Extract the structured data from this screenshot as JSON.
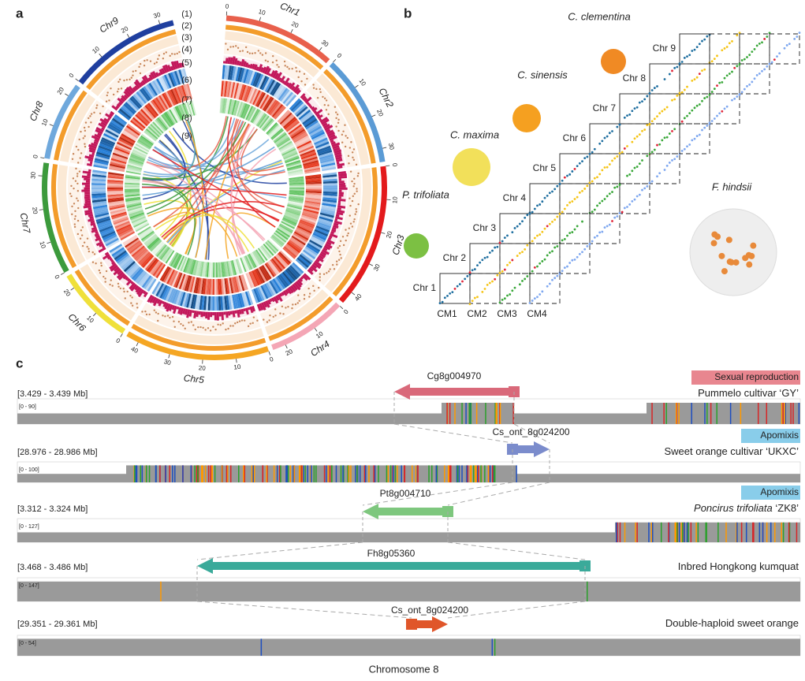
{
  "panel_a": {
    "label": "a",
    "track_labels": [
      "(1)",
      "(2)",
      "(3)",
      "(4)",
      "(5)",
      "(6)",
      "(7)",
      "(8)",
      "(9)"
    ],
    "chromosomes": [
      {
        "name": "Chr1",
        "ticks": [
          0,
          10,
          20,
          30
        ]
      },
      {
        "name": "Chr2",
        "ticks": [
          0,
          10,
          20,
          30
        ]
      },
      {
        "name": "Chr3",
        "ticks": [
          0,
          10,
          20,
          30,
          40
        ]
      },
      {
        "name": "Chr4",
        "ticks": [
          0,
          10,
          20
        ]
      },
      {
        "name": "Chr5",
        "ticks": [
          0,
          10,
          20,
          30,
          40
        ]
      },
      {
        "name": "Chr6",
        "ticks": [
          0,
          10,
          20
        ]
      },
      {
        "name": "Chr7",
        "ticks": [
          0,
          10,
          20,
          30
        ]
      },
      {
        "name": "Chr8",
        "ticks": [
          0,
          10,
          20
        ]
      },
      {
        "name": "Chr9",
        "ticks": [
          0,
          10,
          20,
          30
        ]
      }
    ]
  },
  "panel_b": {
    "label": "b",
    "species": [
      "C. clementina",
      "C. sinensis",
      "C. maxima",
      "P. trifoliata",
      "F. hindsii"
    ],
    "rows": [
      "Chr 1",
      "Chr 2",
      "Chr 3",
      "Chr 4",
      "Chr 5",
      "Chr 6",
      "Chr 7",
      "Chr 8",
      "Chr 9"
    ],
    "columns": [
      "CM1",
      "CM2",
      "CM3",
      "CM4"
    ]
  },
  "panel_c": {
    "label": "c",
    "xlabel": "Chromosome 8",
    "tracks": [
      {
        "range": "[3.429 - 3.439 Mb]",
        "scale": "[0 - 90]",
        "gene": "Cg8g004970",
        "tag": "Sexual reproduction",
        "sample": "Pummelo cultivar ‘GY’"
      },
      {
        "range": "[28.976 - 28.986 Mb]",
        "scale": "[0 - 100]",
        "gene": "Cs_ont_8g024200",
        "tag": "Apomixis",
        "sample": "Sweet orange cultivar ‘UKXC’"
      },
      {
        "range": "[3.312 - 3.324 Mb]",
        "scale": "[0 - 127]",
        "gene": "Pt8g004710",
        "tag": "Apomixis",
        "sample_italic": "Poncirus trifoliata",
        "sample": "‘ZK8’"
      },
      {
        "range": "[3.468 - 3.486 Mb]",
        "scale": "[0 - 147]",
        "gene": "Fh8g05360",
        "sample": "Inbred Hongkong kumquat"
      },
      {
        "range": "[29.351 - 29.361 Mb]",
        "scale": "[0 - 54]",
        "gene": "Cs_ont_8g024200",
        "sample": "Double-haploid sweet orange"
      }
    ]
  }
}
